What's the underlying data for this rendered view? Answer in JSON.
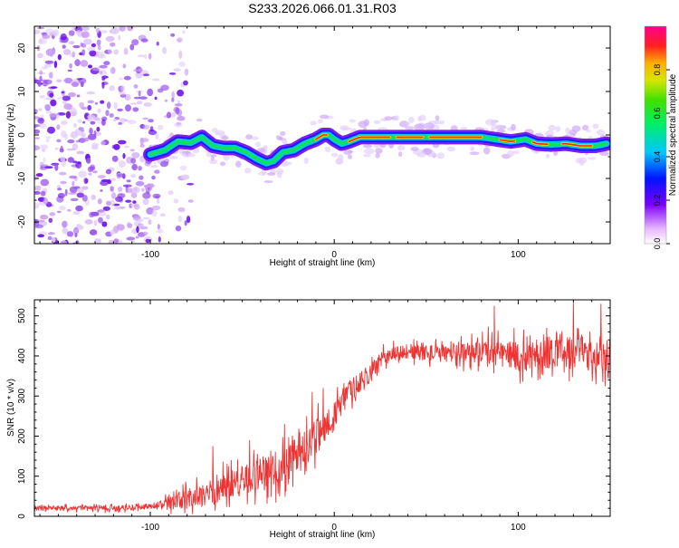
{
  "figure_title": "S233.2026.066.01.31.R03",
  "chart_data": [
    {
      "type": "heatmap",
      "name": "spectrogram",
      "xlabel": "Height of straight line (km)",
      "ylabel": "Frequency (Hz)",
      "xlim": [
        -163,
        150
      ],
      "ylim": [
        -25,
        25
      ],
      "xticks": [
        -100,
        0,
        100
      ],
      "xtick_labels": [
        "-100",
        "0",
        "100"
      ],
      "yticks": [
        -20,
        -10,
        0,
        10,
        20
      ],
      "ytick_labels": [
        "-20",
        "-10",
        "0",
        "10",
        "20"
      ],
      "noise_region_x": [
        -163,
        -100
      ],
      "ridge": {
        "x": [
          -100,
          -92,
          -85,
          -78,
          -72,
          -66,
          -60,
          -54,
          -48,
          -42,
          -37,
          -33,
          -28,
          -22,
          -16,
          -10,
          -6,
          -3,
          0,
          4,
          8,
          14,
          20,
          30,
          40,
          50,
          60,
          70,
          80,
          88,
          96,
          104,
          110,
          118,
          126,
          134,
          142,
          148
        ],
        "y": [
          -4.5,
          -3.5,
          -1.5,
          -1.8,
          -0.5,
          -2.5,
          -3.0,
          -3.0,
          -4.0,
          -5.5,
          -6.5,
          -6.0,
          -4.0,
          -3.5,
          -2.0,
          -1.0,
          0.0,
          0.0,
          -1.0,
          -2.0,
          -1.5,
          -0.5,
          -0.5,
          -0.5,
          -0.5,
          -0.5,
          -0.5,
          -0.5,
          -0.5,
          -1.0,
          -1.5,
          -1.0,
          -2.0,
          -2.2,
          -2.0,
          -2.5,
          -2.5,
          -2.0
        ]
      },
      "colorbar": {
        "label": "Normalized spectral amplitude",
        "range": [
          0,
          1
        ],
        "ticks": [
          0.0,
          0.2,
          0.4,
          0.6,
          0.8
        ],
        "tick_labels": [
          "0.0",
          "0.2",
          "0.4",
          "0.6",
          "0.8"
        ]
      }
    },
    {
      "type": "line",
      "name": "snr",
      "xlabel": "Height of straight line (km)",
      "ylabel": "SNR (10 * v/v)",
      "xlim": [
        -163,
        150
      ],
      "ylim": [
        0,
        540
      ],
      "xticks": [
        -100,
        0,
        100
      ],
      "xtick_labels": [
        "-100",
        "0",
        "100"
      ],
      "yticks": [
        0,
        100,
        200,
        300,
        400,
        500
      ],
      "ytick_labels": [
        "0",
        "100",
        "200",
        "300",
        "400",
        "500"
      ],
      "color": "#ee3333",
      "trend": {
        "x": [
          -163,
          -120,
          -100,
          -90,
          -80,
          -70,
          -60,
          -50,
          -40,
          -30,
          -20,
          -15,
          -10,
          -5,
          0,
          5,
          10,
          15,
          20,
          25,
          30,
          40,
          60,
          80,
          100,
          120,
          150
        ],
        "y": [
          20,
          20,
          25,
          30,
          45,
          55,
          75,
          90,
          100,
          120,
          150,
          175,
          200,
          225,
          250,
          290,
          320,
          340,
          360,
          390,
          405,
          410,
          405,
          415,
          400,
          410,
          400
        ]
      },
      "noise_amplitude": {
        "x": [
          -163,
          -100,
          -80,
          -60,
          -40,
          -20,
          0,
          20,
          30,
          60,
          80,
          100,
          150
        ],
        "y": [
          8,
          10,
          35,
          50,
          60,
          70,
          50,
          30,
          25,
          30,
          45,
          55,
          60
        ]
      },
      "peaks": [
        {
          "x": -66,
          "y": 175
        },
        {
          "x": -56,
          "y": 140
        },
        {
          "x": -46,
          "y": 190
        },
        {
          "x": -27,
          "y": 230
        },
        {
          "x": -15,
          "y": 250
        },
        {
          "x": -12,
          "y": 310
        },
        {
          "x": -6,
          "y": 320
        },
        {
          "x": 87,
          "y": 525
        },
        {
          "x": 130,
          "y": 540
        },
        {
          "x": 145,
          "y": 530
        }
      ]
    }
  ]
}
